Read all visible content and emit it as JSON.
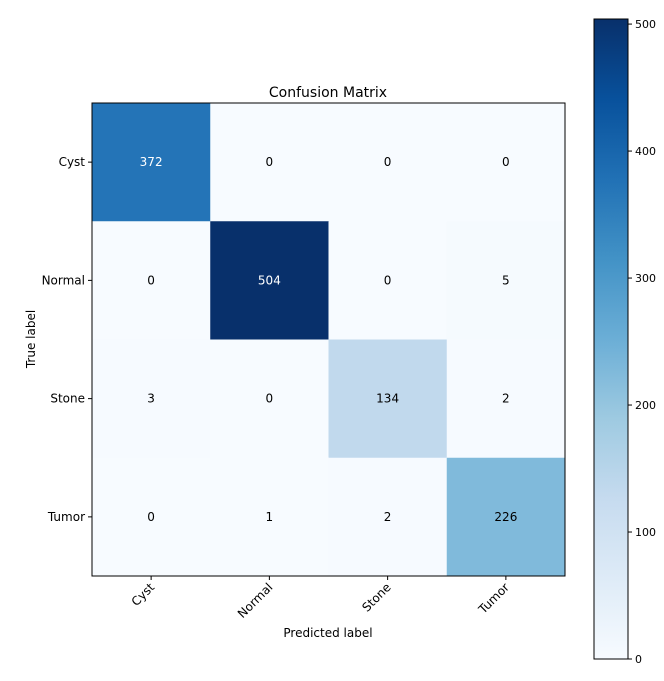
{
  "chart_data": {
    "type": "heatmap",
    "title": "Confusion Matrix",
    "xlabel": "Predicted label",
    "ylabel": "True label",
    "x_categories": [
      "Cyst",
      "Normal",
      "Stone",
      "Tumor"
    ],
    "y_categories": [
      "Cyst",
      "Normal",
      "Stone",
      "Tumor"
    ],
    "values": [
      [
        372,
        0,
        0,
        0
      ],
      [
        0,
        504,
        0,
        5
      ],
      [
        3,
        0,
        134,
        2
      ],
      [
        0,
        1,
        2,
        226
      ]
    ],
    "colormap": "Blues",
    "vmin": 0,
    "vmax": 504,
    "colorbar_ticks": [
      0,
      100,
      200,
      300,
      400,
      500
    ],
    "text_threshold": 252,
    "colors": {
      "light_text": "#ffffff",
      "dark_text": "#000000"
    }
  }
}
